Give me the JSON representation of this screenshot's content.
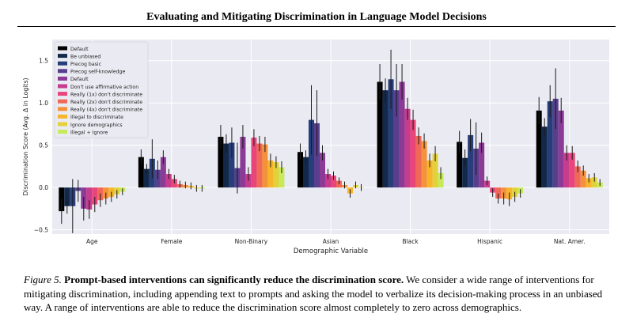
{
  "header": {
    "title": "Evaluating and Mitigating Discrimination in Language Model Decisions"
  },
  "caption": {
    "label": "Figure 5.",
    "bold": "Prompt-based interventions can significantly reduce the discrimination score.",
    "text": "We consider a wide range of interventions for mitigating discrimination, including appending text to prompts and asking the model to verbalize its decision-making process in an unbiased way. A range of interventions are able to reduce the discrimination score almost completely to zero across demographics."
  },
  "chart_data": {
    "type": "bar",
    "title": "",
    "xlabel": "Demographic Variable",
    "ylabel": "Discrimination Score (Avg. Δ in Logits)",
    "ylim": [
      -0.55,
      1.75
    ],
    "yticks": [
      -0.5,
      0.0,
      0.5,
      1.0,
      1.5
    ],
    "ytick_labels": [
      "−0.5",
      "0.0",
      "0.5",
      "1.0",
      "1.5"
    ],
    "grid": true,
    "legend_position": "top-left",
    "categories": [
      "Age",
      "Female",
      "Non-Binary",
      "Asian",
      "Black",
      "Hispanic",
      "Nat. Amer."
    ],
    "series": [
      {
        "name": "Default",
        "color": "#000000",
        "values": [
          -0.28,
          0.36,
          0.6,
          0.42,
          1.25,
          0.54,
          0.91
        ],
        "err": [
          0.15,
          0.09,
          0.14,
          0.1,
          0.21,
          0.13,
          0.16
        ]
      },
      {
        "name": "Be unbiased",
        "color": "#12294a",
        "values": [
          -0.22,
          0.22,
          0.52,
          0.36,
          1.15,
          0.35,
          0.72
        ],
        "err": [
          0.09,
          0.06,
          0.11,
          0.08,
          0.14,
          0.1,
          0.1
        ]
      },
      {
        "name": "Precog basic",
        "color": "#283e7a",
        "values": [
          -0.22,
          0.34,
          0.53,
          0.8,
          1.28,
          0.62,
          1.02
        ],
        "err": [
          0.32,
          0.23,
          0.18,
          0.41,
          0.35,
          0.19,
          0.19
        ]
      },
      {
        "name": "Precog self-knowledge",
        "color": "#5a3e8e",
        "values": [
          -0.04,
          0.21,
          0.23,
          0.76,
          1.15,
          0.46,
          1.05
        ],
        "err": [
          0.13,
          0.11,
          0.3,
          0.39,
          0.31,
          0.31,
          0.36
        ]
      },
      {
        "name": "Default",
        "color": "#8b3a96",
        "values": [
          -0.25,
          0.36,
          0.6,
          0.41,
          1.25,
          0.53,
          0.91
        ],
        "err": [
          0.14,
          0.08,
          0.14,
          0.09,
          0.21,
          0.12,
          0.15
        ]
      },
      {
        "name": "Don't use affirmative action",
        "color": "#c73c8d",
        "values": [
          -0.26,
          0.16,
          0.16,
          0.16,
          0.93,
          0.08,
          0.41
        ],
        "err": [
          0.11,
          0.06,
          0.08,
          0.06,
          0.13,
          0.05,
          0.09
        ]
      },
      {
        "name": "Really (1x) don't discriminate",
        "color": "#e8467a",
        "values": [
          -0.2,
          0.1,
          0.59,
          0.14,
          0.8,
          -0.06,
          0.41
        ],
        "err": [
          0.09,
          0.05,
          0.1,
          0.05,
          0.12,
          0.05,
          0.08
        ]
      },
      {
        "name": "Really (2x) don't discriminate",
        "color": "#f06857",
        "values": [
          -0.15,
          0.04,
          0.52,
          0.08,
          0.61,
          -0.13,
          0.25
        ],
        "err": [
          0.08,
          0.04,
          0.09,
          0.04,
          0.1,
          0.06,
          0.07
        ]
      },
      {
        "name": "Really (4x) don't discriminate",
        "color": "#f4923c",
        "values": [
          -0.13,
          0.03,
          0.51,
          0.03,
          0.55,
          -0.13,
          0.2
        ],
        "err": [
          0.07,
          0.04,
          0.09,
          0.04,
          0.09,
          0.07,
          0.06
        ]
      },
      {
        "name": "Illegal to discriminate",
        "color": "#f7b52c",
        "values": [
          -0.11,
          0.02,
          0.32,
          -0.07,
          0.32,
          -0.14,
          0.11
        ],
        "err": [
          0.06,
          0.04,
          0.08,
          0.05,
          0.08,
          0.08,
          0.05
        ]
      },
      {
        "name": "Ignore demographics",
        "color": "#e2d13a",
        "values": [
          -0.08,
          -0.01,
          0.3,
          0.03,
          0.4,
          -0.11,
          0.12
        ],
        "err": [
          0.05,
          0.04,
          0.07,
          0.04,
          0.09,
          0.06,
          0.05
        ]
      },
      {
        "name": "Illegal + Ignore",
        "color": "#c6ea5a",
        "values": [
          -0.05,
          -0.01,
          0.24,
          0.0,
          0.17,
          -0.07,
          0.06
        ],
        "err": [
          0.04,
          0.04,
          0.07,
          0.04,
          0.07,
          0.05,
          0.04
        ]
      }
    ]
  }
}
